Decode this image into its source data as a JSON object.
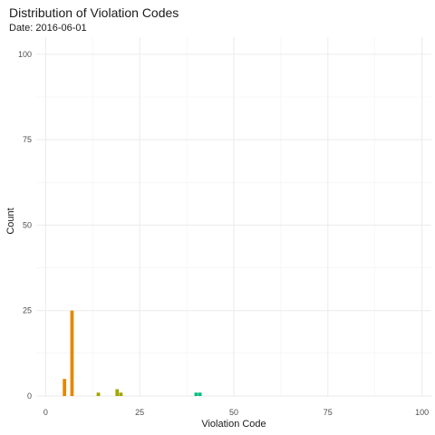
{
  "chart_data": {
    "type": "bar",
    "title": "Distribution of Violation Codes",
    "subtitle": "Date: 2016-06-01",
    "xlabel": "Violation Code",
    "ylabel": "Count",
    "xlim": [
      -2.5,
      102.5
    ],
    "ylim": [
      0,
      105
    ],
    "xticks": [
      0,
      25,
      50,
      75,
      100
    ],
    "yticks": [
      0,
      25,
      50,
      75,
      100
    ],
    "grid": true,
    "legend": "none",
    "bar_width": 1,
    "points": [
      {
        "x": 5,
        "value": 5,
        "color": "#E58700"
      },
      {
        "x": 7,
        "value": 25,
        "color": "#E58700"
      },
      {
        "x": 14,
        "value": 1,
        "color": "#A3A500"
      },
      {
        "x": 19,
        "value": 2,
        "color": "#A3A500"
      },
      {
        "x": 20,
        "value": 1,
        "color": "#A3A500"
      },
      {
        "x": 40,
        "value": 1,
        "color": "#00BF7D"
      },
      {
        "x": 41,
        "value": 1,
        "color": "#00BF7D"
      }
    ]
  }
}
